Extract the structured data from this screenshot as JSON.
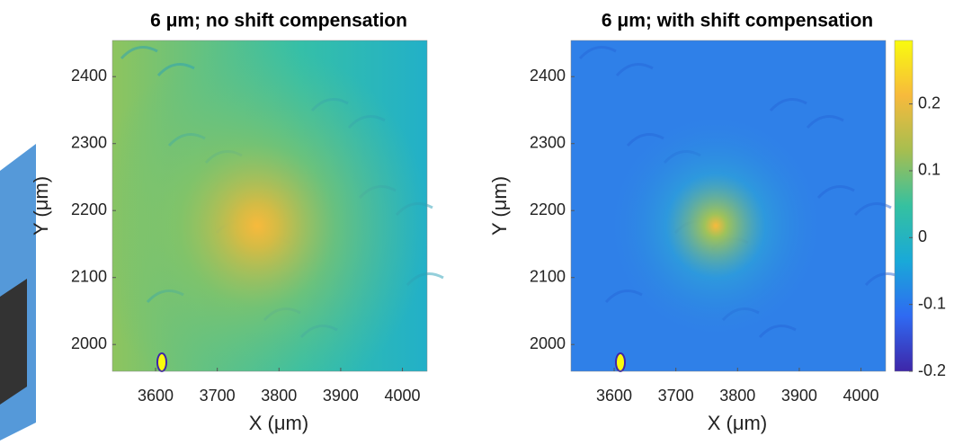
{
  "chart_data": [
    {
      "type": "heatmap",
      "title": "6 μm; no shift compensation",
      "x_label": "X (μm)",
      "y_label": "Y (μm)",
      "xlim": [
        3530,
        4040
      ],
      "xticks": [
        3600,
        3700,
        3800,
        3900,
        4000
      ],
      "ylim": [
        1960,
        2454
      ],
      "yticks": [
        2000,
        2100,
        2200,
        2300,
        2400
      ],
      "colormap": [
        "#3e26a8",
        "#2f6af2",
        "#19a9d8",
        "#35c1a0",
        "#a6be50",
        "#f7ba3c",
        "#f9fb0e"
      ]
    },
    {
      "type": "heatmap",
      "title": "6 μm; with shift compensation",
      "x_label": "X (μm)",
      "y_label": "Y (μm)",
      "xlim": [
        3530,
        4040
      ],
      "xticks": [
        3600,
        3700,
        3800,
        3900,
        4000
      ],
      "ylim": [
        1960,
        2454
      ],
      "yticks": [
        2000,
        2100,
        2200,
        2300,
        2400
      ],
      "colormap": [
        "#3e26a8",
        "#2f6af2",
        "#19a9d8",
        "#35c1a0",
        "#a6be50",
        "#f7ba3c",
        "#f9fb0e"
      ],
      "colorbar": {
        "lim": [
          -0.2,
          0.295
        ],
        "ticks": [
          -0.2,
          -0.1,
          0,
          0.1,
          0.2
        ]
      }
    }
  ]
}
